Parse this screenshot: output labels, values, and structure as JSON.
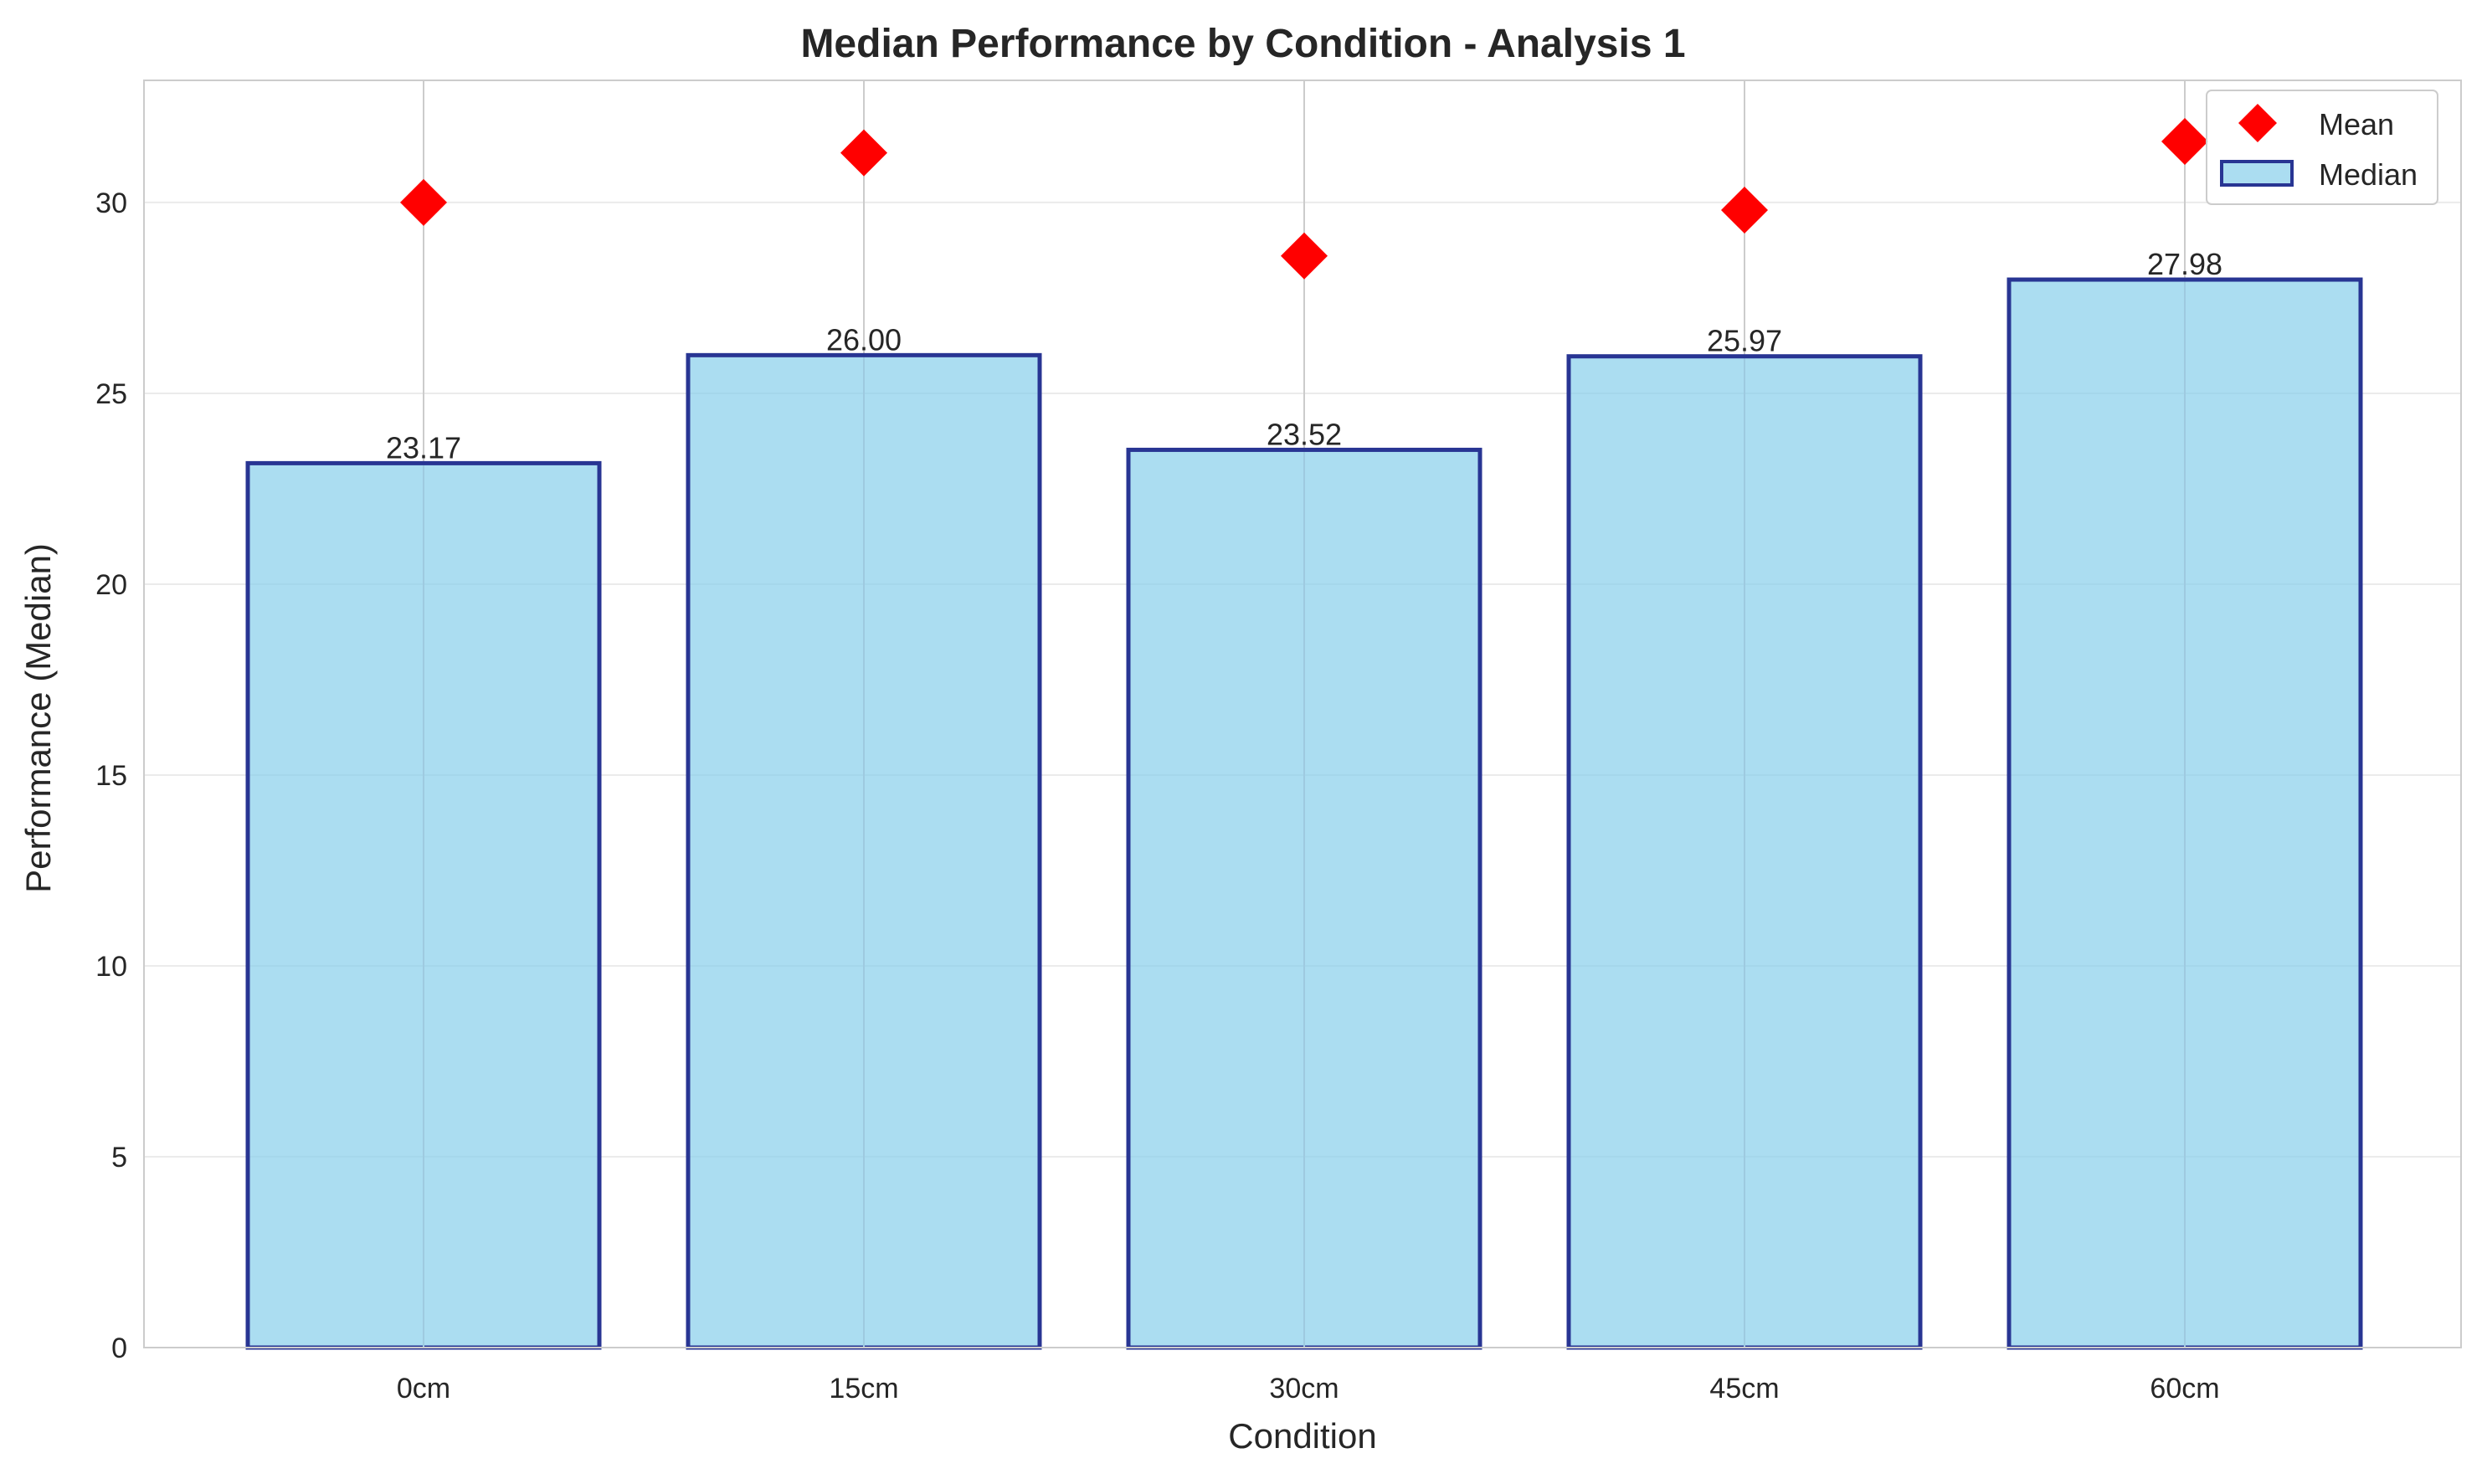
{
  "chart_data": {
    "type": "bar",
    "title": "Median Performance by Condition - Analysis 1",
    "xlabel": "Condition",
    "ylabel": "Performance (Median)",
    "categories": [
      "0cm",
      "15cm",
      "30cm",
      "45cm",
      "60cm"
    ],
    "series": [
      {
        "name": "Median",
        "type": "bar",
        "values": [
          23.17,
          26.0,
          23.52,
          25.97,
          27.98
        ],
        "data_labels": [
          "23.17",
          "26.00",
          "23.52",
          "25.97",
          "27.98"
        ],
        "color": "#87CEEB",
        "edge_color": "#283593"
      },
      {
        "name": "Mean",
        "type": "scatter",
        "marker": "diamond",
        "values": [
          30.0,
          31.3,
          28.6,
          29.8,
          31.6
        ],
        "color": "#FF0000"
      }
    ],
    "ylim": [
      0,
      33.2
    ],
    "yticks": [
      0,
      5,
      10,
      15,
      20,
      25,
      30
    ],
    "grid": true,
    "legend": {
      "position": "top-right",
      "entries": [
        "Mean",
        "Median"
      ]
    }
  }
}
